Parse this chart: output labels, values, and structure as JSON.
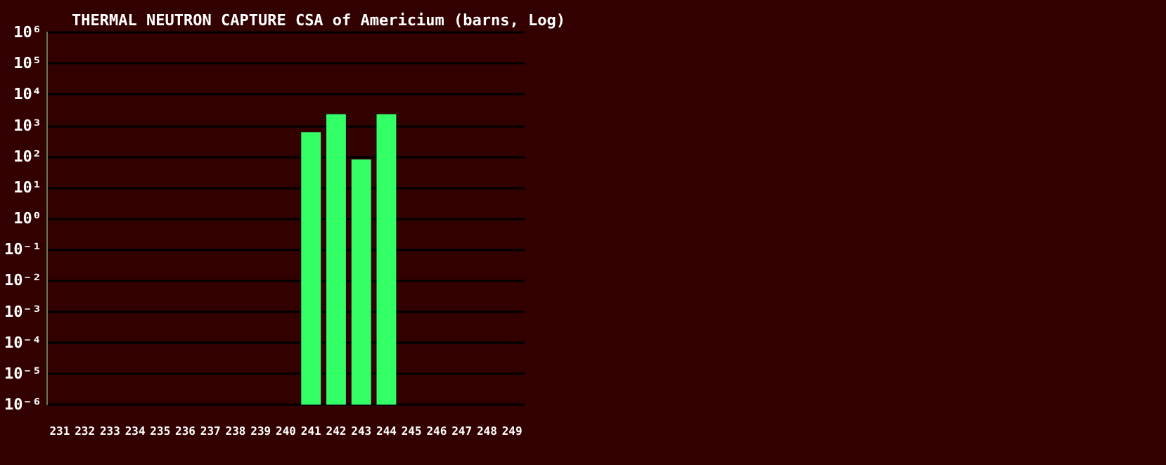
{
  "chart_data": {
    "type": "bar",
    "title": "THERMAL NEUTRON CAPTURE CSA of Americium (barns, Log)",
    "categories": [
      "231",
      "232",
      "233",
      "234",
      "235",
      "236",
      "237",
      "238",
      "239",
      "240",
      "241",
      "242",
      "243",
      "244",
      "245",
      "246",
      "247",
      "248",
      "249"
    ],
    "values": [
      null,
      null,
      null,
      null,
      null,
      null,
      null,
      null,
      null,
      null,
      600,
      2300,
      80,
      2300,
      null,
      null,
      null,
      null,
      null
    ],
    "color": "#33ff66",
    "log": true,
    "ylim": [
      1e-06,
      1000000
    ],
    "yticks": [
      {
        "value": 1e-06,
        "label": "10⁻⁶"
      },
      {
        "value": 1e-05,
        "label": "10⁻⁵"
      },
      {
        "value": 0.0001,
        "label": "10⁻⁴"
      },
      {
        "value": 0.001,
        "label": "10⁻³"
      },
      {
        "value": 0.01,
        "label": "10⁻²"
      },
      {
        "value": 0.1,
        "label": "10⁻¹"
      },
      {
        "value": 1,
        "label": "10⁰"
      },
      {
        "value": 10,
        "label": "10¹"
      },
      {
        "value": 100,
        "label": "10²"
      },
      {
        "value": 1000,
        "label": "10³"
      },
      {
        "value": 10000,
        "label": "10⁴"
      },
      {
        "value": 100000,
        "label": "10⁵"
      },
      {
        "value": 1000000,
        "label": "10⁶"
      }
    ],
    "grid": "y"
  }
}
